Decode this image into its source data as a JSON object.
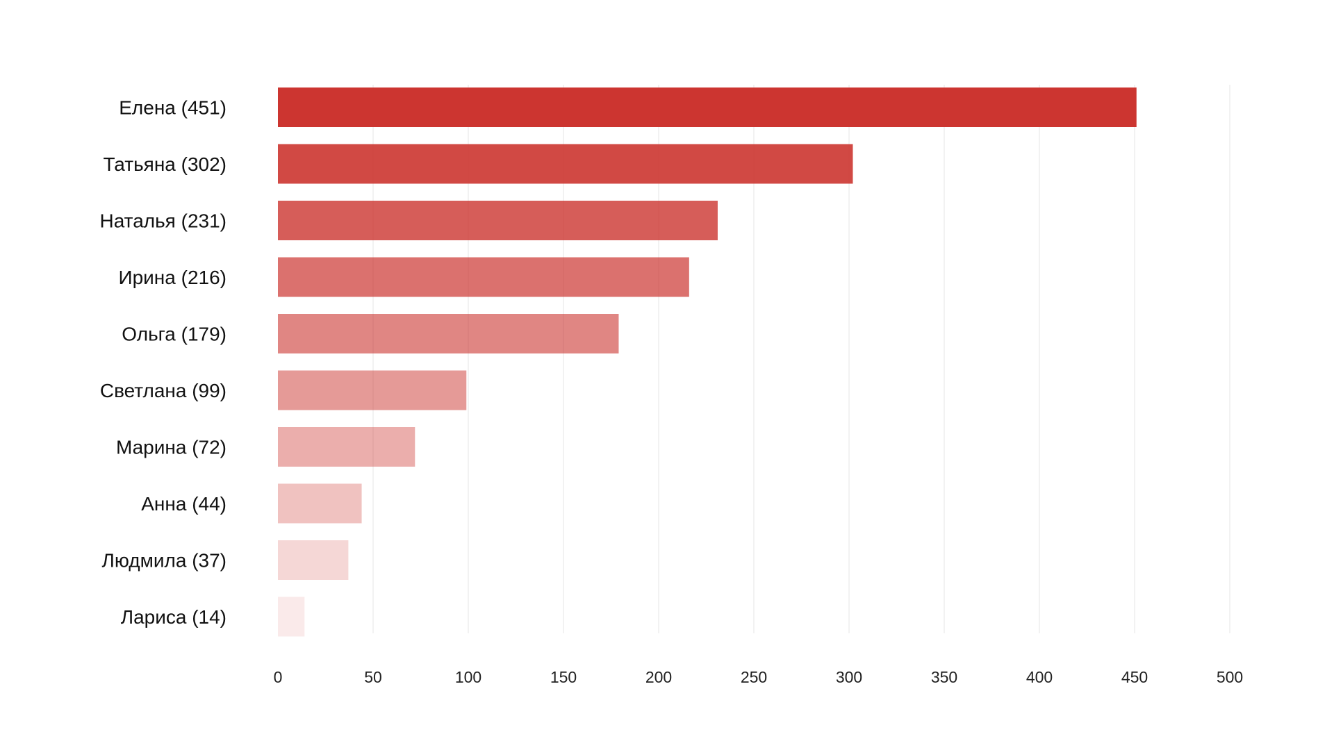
{
  "chart_data": {
    "type": "bar",
    "orientation": "horizontal",
    "title": "",
    "xlabel": "",
    "ylabel": "",
    "categories": [
      "Елена (451)",
      "Татьяна (302)",
      "Наталья (231)",
      "Ирина (216)",
      "Ольга (179)",
      "Светлана (99)",
      "Марина (72)",
      "Анна (44)",
      "Людмила (37)",
      "Лариса (14)"
    ],
    "values": [
      451,
      302,
      231,
      216,
      179,
      99,
      72,
      44,
      37,
      14
    ],
    "xlim": [
      0,
      500
    ],
    "ticks": [
      "0",
      "50",
      "100",
      "150",
      "200",
      "250",
      "300",
      "350",
      "400",
      "450",
      "500"
    ],
    "grid": true,
    "legend": "none",
    "colors": {
      "bar_base": "#cc3530",
      "text": "#111111",
      "grid": "#eeeeee"
    }
  }
}
